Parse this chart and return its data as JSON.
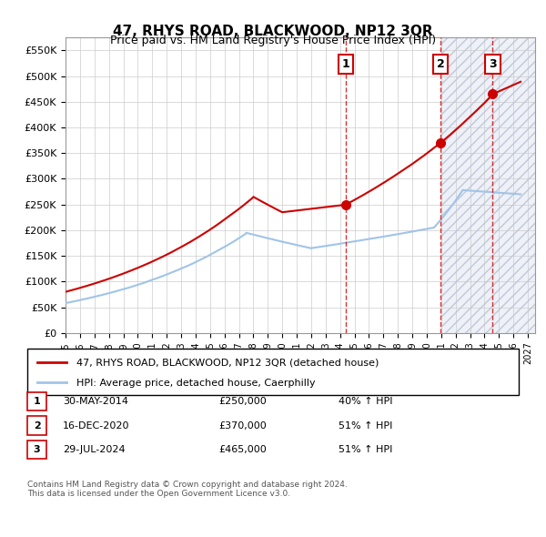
{
  "title": "47, RHYS ROAD, BLACKWOOD, NP12 3QR",
  "subtitle": "Price paid vs. HM Land Registry's House Price Index (HPI)",
  "ylabel": "",
  "ylim": [
    0,
    575000
  ],
  "yticks": [
    0,
    50000,
    100000,
    150000,
    200000,
    250000,
    300000,
    350000,
    400000,
    450000,
    500000,
    550000
  ],
  "xlim_start": 1995.0,
  "xlim_end": 2027.5,
  "sales": [
    {
      "year": 2014.41,
      "price": 250000,
      "label": "1"
    },
    {
      "year": 2020.96,
      "price": 370000,
      "label": "2"
    },
    {
      "year": 2024.57,
      "price": 465000,
      "label": "3"
    }
  ],
  "legend_line1": "47, RHYS ROAD, BLACKWOOD, NP12 3QR (detached house)",
  "legend_line2": "HPI: Average price, detached house, Caerphilly",
  "table_rows": [
    {
      "num": "1",
      "date": "30-MAY-2014",
      "price": "£250,000",
      "change": "40% ↑ HPI"
    },
    {
      "num": "2",
      "date": "16-DEC-2020",
      "price": "£370,000",
      "change": "51% ↑ HPI"
    },
    {
      "num": "3",
      "date": "29-JUL-2024",
      "price": "£465,000",
      "change": "51% ↑ HPI"
    }
  ],
  "footnote1": "Contains HM Land Registry data © Crown copyright and database right 2024.",
  "footnote2": "This data is licensed under the Open Government Licence v3.0.",
  "hpi_color": "#a0c4e8",
  "sale_color": "#cc0000",
  "dashed_color": "#cc0000",
  "hatch_color": "#d0d8e8",
  "bg_color": "#f0f4f8"
}
